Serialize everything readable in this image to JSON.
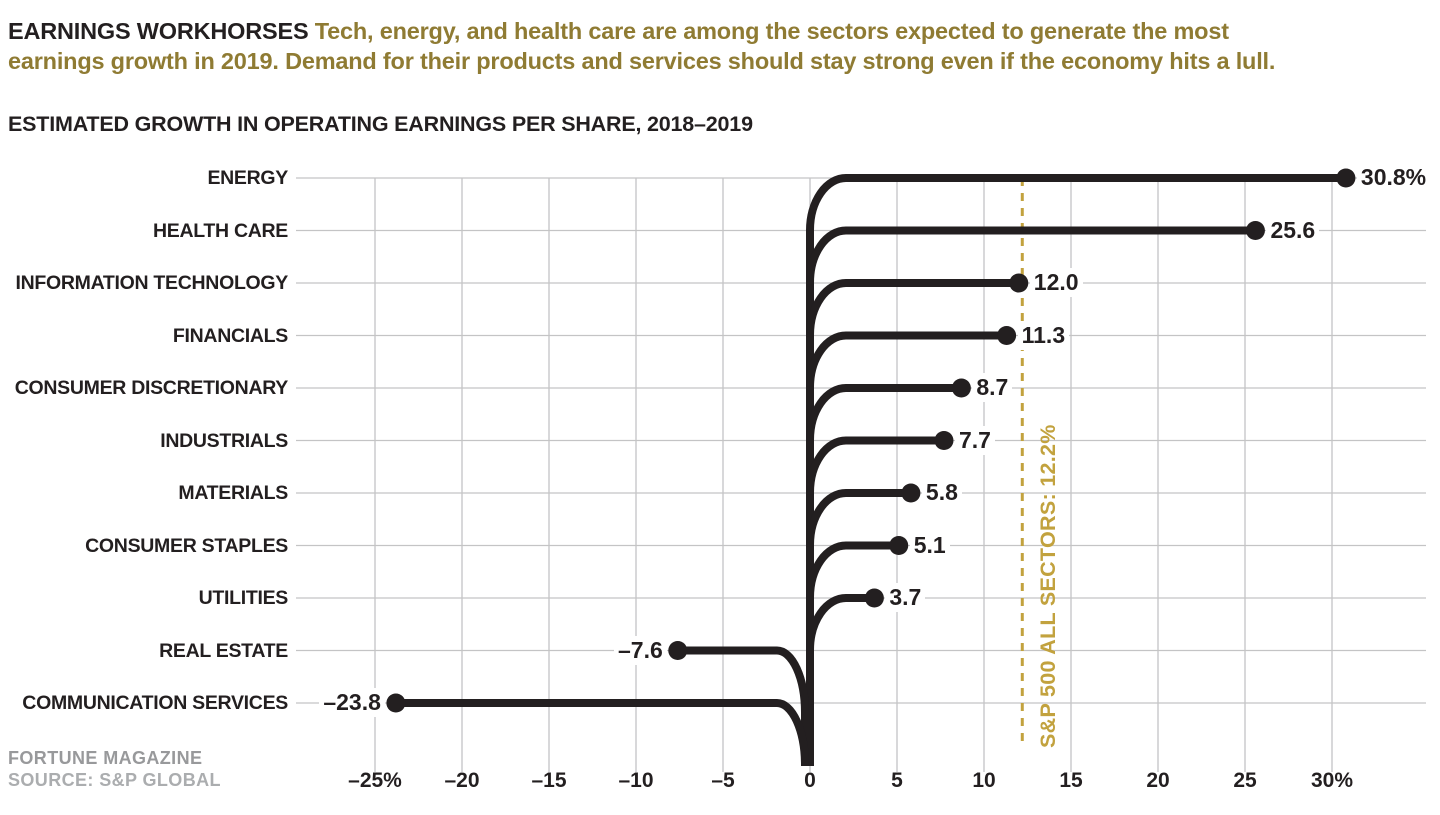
{
  "header": {
    "bold": "EARNINGS WORKHORSES",
    "line1": " Tech, energy, and health care are among the sectors expected to generate the most",
    "line2": "earnings growth in 2019. Demand for their products and services should stay strong even if the economy hits a lull."
  },
  "footer": {
    "line1": "FORTUNE MAGAZINE",
    "line2": "SOURCE: S&P GLOBAL"
  },
  "colors": {
    "black": "#231f20",
    "gold_dark": "#8f7b33",
    "gold_bright": "#c2a23e",
    "grid": "#c4c4c5"
  },
  "chart_data": {
    "type": "bar",
    "orientation": "horizontal",
    "title": "ESTIMATED GROWTH IN OPERATING EARNINGS PER SHARE, 2018–2019",
    "categories": [
      "ENERGY",
      "HEALTH CARE",
      "INFORMATION TECHNOLOGY",
      "FINANCIALS",
      "CONSUMER DISCRETIONARY",
      "INDUSTRIALS",
      "MATERIALS",
      "CONSUMER STAPLES",
      "UTILITIES",
      "REAL ESTATE",
      "COMMUNICATION SERVICES"
    ],
    "values": [
      30.8,
      25.6,
      12.0,
      11.3,
      8.7,
      7.7,
      5.8,
      5.1,
      3.7,
      -7.6,
      -23.8
    ],
    "value_labels": [
      "30.8%",
      "25.6",
      "12.0",
      "11.3",
      "8.7",
      "7.7",
      "5.8",
      "5.1",
      "3.7",
      "–7.6",
      "–23.8"
    ],
    "reference_line": {
      "value": 12.2,
      "label": "S&P 500 ALL SECTORS: 12.2%"
    },
    "x_ticks": {
      "values": [
        -25,
        -20,
        -15,
        -10,
        -5,
        0,
        5,
        10,
        15,
        20,
        25,
        30
      ],
      "labels": [
        "–25%",
        "–20",
        "–15",
        "–10",
        "–5",
        "0",
        "5",
        "10",
        "15",
        "20",
        "25",
        "30%"
      ]
    },
    "xlim": [
      -25,
      30
    ],
    "grid": true,
    "legend": false
  }
}
